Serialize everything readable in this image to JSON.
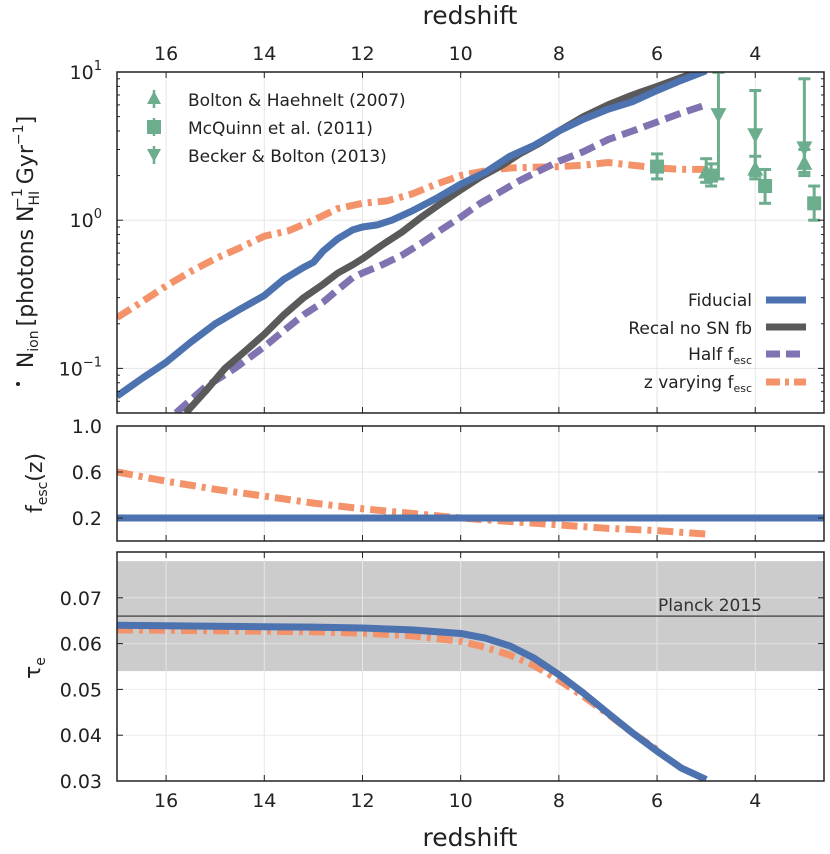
{
  "figure": {
    "top_xlabel": "redshift",
    "bottom_xlabel": "redshift",
    "x_range": [
      17,
      2.6
    ],
    "x_ticks": [
      16,
      14,
      12,
      10,
      8,
      6,
      4
    ],
    "x_tick_labels": [
      "16",
      "14",
      "12",
      "10",
      "8",
      "6",
      "4"
    ]
  },
  "colors": {
    "fiducial": "#4c72b0",
    "recal": "#5a5a5a",
    "half": "#8172b2",
    "zvary": "#f4926a",
    "obs": "#6cad8e",
    "band": "#cccccc",
    "planck_line": "#555555"
  },
  "chart_data": [
    {
      "type": "line",
      "panel": "top",
      "ylabel": "Ṅion [photons N_HI^-1 Gyr^-1]",
      "ylabel_parts": {
        "N": "N",
        "ion": "ion",
        "open": "[photons N",
        "hi": "HI",
        "minus1": "−1",
        "gyr": "Gyr",
        "close": "]"
      },
      "yscale": "log",
      "ylim": [
        0.05,
        10
      ],
      "y_ticks": [
        {
          "value": 10,
          "base": "10",
          "exp": "1"
        },
        {
          "value": 1,
          "base": "10",
          "exp": "0"
        },
        {
          "value": 0.1,
          "base": "10",
          "exp": "−1"
        }
      ],
      "series": [
        {
          "name": "Fiducial",
          "key": "fiducial",
          "style": "solid",
          "x": [
            17,
            16.5,
            16,
            15.5,
            15,
            14.5,
            14,
            13.6,
            13.2,
            13,
            12.8,
            12.5,
            12.2,
            12,
            11.7,
            11.4,
            11,
            10.5,
            10,
            9.5,
            9,
            8.5,
            8,
            7.5,
            7,
            6.5,
            6,
            5.5,
            5
          ],
          "y": [
            0.065,
            0.085,
            0.11,
            0.15,
            0.2,
            0.25,
            0.31,
            0.4,
            0.48,
            0.52,
            0.62,
            0.75,
            0.86,
            0.9,
            0.93,
            1.0,
            1.15,
            1.4,
            1.75,
            2.1,
            2.7,
            3.2,
            4.0,
            4.8,
            5.6,
            6.3,
            7.5,
            8.8,
            10.2
          ]
        },
        {
          "name": "Recal no SN fb",
          "label_text": "Recal no SN fb",
          "key": "recal",
          "style": "solid",
          "x": [
            15.6,
            15.2,
            14.8,
            14.4,
            14,
            13.6,
            13.2,
            12.8,
            12.5,
            12.2,
            12,
            11.6,
            11.2,
            10.8,
            10.4,
            10,
            9.6,
            9.2,
            8.8,
            8.4,
            8,
            7.5,
            7,
            6.5,
            6,
            5.5,
            5
          ],
          "y": [
            0.05,
            0.07,
            0.1,
            0.13,
            0.17,
            0.23,
            0.3,
            0.37,
            0.44,
            0.5,
            0.55,
            0.68,
            0.83,
            1.05,
            1.3,
            1.6,
            1.95,
            2.3,
            2.8,
            3.3,
            4.0,
            5.0,
            6.0,
            7.0,
            8.0,
            9.2,
            10.5
          ]
        },
        {
          "name": "Half f_esc",
          "label_text": "Half f",
          "label_sub": "esc",
          "key": "half",
          "style": "dashed",
          "x": [
            15.8,
            15.2,
            14.6,
            14,
            13.6,
            13.2,
            12.8,
            12.5,
            12.2,
            12,
            11.6,
            11.2,
            10.8,
            10.4,
            10,
            9.6,
            9.2,
            8.8,
            8.4,
            8,
            7.5,
            7,
            6.5,
            6,
            5.5,
            5
          ],
          "y": [
            0.05,
            0.075,
            0.1,
            0.14,
            0.18,
            0.23,
            0.28,
            0.34,
            0.41,
            0.44,
            0.5,
            0.58,
            0.7,
            0.86,
            1.05,
            1.3,
            1.55,
            1.85,
            2.15,
            2.5,
            2.9,
            3.5,
            4.0,
            4.6,
            5.3,
            6.0
          ]
        },
        {
          "name": "z varying f_esc",
          "label_text": "z varying f",
          "label_sub": "esc",
          "key": "zvary",
          "style": "dashdot",
          "x": [
            17,
            16.5,
            16,
            15.5,
            15,
            14.5,
            14,
            13.5,
            13,
            12.5,
            12,
            11.5,
            11,
            10.5,
            10,
            9.5,
            9,
            8.5,
            8,
            7.5,
            7,
            6.5,
            6,
            5.5,
            5
          ],
          "y": [
            0.22,
            0.28,
            0.36,
            0.45,
            0.55,
            0.65,
            0.78,
            0.85,
            1.0,
            1.2,
            1.3,
            1.35,
            1.5,
            1.75,
            2.0,
            2.15,
            2.25,
            2.28,
            2.3,
            2.35,
            2.45,
            2.35,
            2.25,
            2.2,
            2.2
          ]
        }
      ],
      "observations": [
        {
          "name": "Bolton & Haehnelt (2007)",
          "marker": "triangle-up",
          "points": [
            {
              "x": 5.0,
              "y": 2.1,
              "ylo": 1.8,
              "yhi": 2.6
            },
            {
              "x": 4.0,
              "y": 2.2,
              "ylo": 1.9,
              "yhi": 2.7
            },
            {
              "x": 3.0,
              "y": 2.4,
              "ylo": 2.0,
              "yhi": 3.0
            }
          ]
        },
        {
          "name": "McQuinn et al. (2011)",
          "marker": "square",
          "points": [
            {
              "x": 6.0,
              "y": 2.3,
              "ylo": 1.9,
              "yhi": 2.8
            },
            {
              "x": 4.9,
              "y": 2.0,
              "ylo": 1.7,
              "yhi": 2.4
            },
            {
              "x": 3.8,
              "y": 1.7,
              "ylo": 1.3,
              "yhi": 2.2
            },
            {
              "x": 2.8,
              "y": 1.3,
              "ylo": 1.0,
              "yhi": 1.7
            }
          ]
        },
        {
          "name": "Becker & Bolton (2013)",
          "marker": "triangle-down",
          "points": [
            {
              "x": 4.75,
              "y": 5.2,
              "ylo": 1.9,
              "yhi": 10
            },
            {
              "x": 4.0,
              "y": 3.8,
              "ylo": 2.0,
              "yhi": 7.5
            },
            {
              "x": 3.0,
              "y": 3.1,
              "ylo": 2.1,
              "yhi": 9.0
            }
          ]
        }
      ]
    },
    {
      "type": "line",
      "panel": "middle",
      "ylabel": "f_esc(z)",
      "ylabel_parts": {
        "f": "f",
        "sub": "esc",
        "rest": "(z)"
      },
      "ylim": [
        0.0,
        1.0
      ],
      "y_ticks": [
        0.2,
        0.6,
        1.0
      ],
      "y_tick_labels": [
        "0.2",
        "0.6",
        "1.0"
      ],
      "series": [
        {
          "name": "Fiducial",
          "key": "fiducial",
          "style": "solid",
          "x": [
            17,
            2.6
          ],
          "y": [
            0.2,
            0.2
          ]
        },
        {
          "name": "z varying f_esc",
          "key": "zvary",
          "style": "dashdot",
          "x": [
            17,
            16,
            15,
            14,
            13,
            12,
            11,
            10,
            9,
            8,
            7,
            6,
            5
          ],
          "y": [
            0.6,
            0.52,
            0.45,
            0.39,
            0.33,
            0.28,
            0.24,
            0.2,
            0.17,
            0.14,
            0.11,
            0.09,
            0.06
          ]
        }
      ]
    },
    {
      "type": "line",
      "panel": "bottom",
      "ylabel": "τe",
      "ylabel_parts": {
        "tau": "τ",
        "sub": "e"
      },
      "ylim": [
        0.03,
        0.08
      ],
      "y_ticks": [
        0.03,
        0.04,
        0.05,
        0.06,
        0.07
      ],
      "y_tick_labels": [
        "0.03",
        "0.04",
        "0.05",
        "0.06",
        "0.07"
      ],
      "planck": {
        "label": "Planck 2015",
        "value": 0.066,
        "band": [
          0.054,
          0.078
        ]
      },
      "series": [
        {
          "name": "Fiducial",
          "key": "fiducial",
          "style": "solid",
          "x": [
            17,
            16,
            15,
            14,
            13,
            12,
            11,
            10,
            9.5,
            9,
            8.5,
            8,
            7.5,
            7,
            6.5,
            6,
            5.5,
            5
          ],
          "y": [
            0.064,
            0.0639,
            0.0638,
            0.0637,
            0.0636,
            0.0634,
            0.063,
            0.0622,
            0.0612,
            0.0595,
            0.0568,
            0.0532,
            0.0492,
            0.0448,
            0.0405,
            0.0365,
            0.0328,
            0.0303
          ]
        },
        {
          "name": "z varying f_esc",
          "key": "zvary",
          "style": "dashdot",
          "x": [
            17,
            16,
            15,
            14,
            13,
            12,
            11,
            10,
            9.5,
            9,
            8.5,
            8,
            7.5,
            7,
            6.5,
            6
          ],
          "y": [
            0.063,
            0.0629,
            0.0628,
            0.0627,
            0.0626,
            0.0623,
            0.0617,
            0.0605,
            0.0592,
            0.0575,
            0.0552,
            0.052,
            0.0485,
            0.0446,
            0.0405,
            0.0368
          ]
        }
      ]
    }
  ]
}
